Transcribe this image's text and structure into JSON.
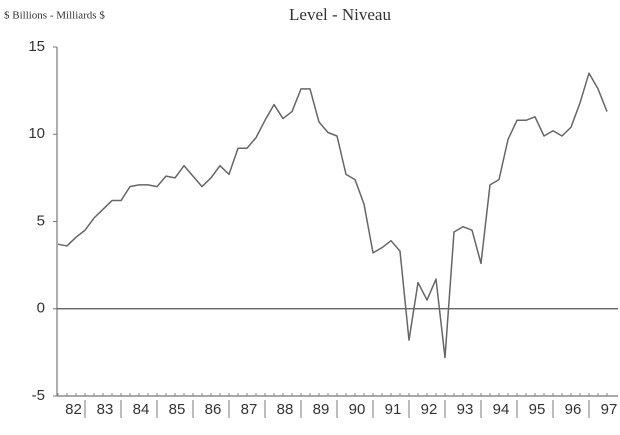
{
  "chart_data": {
    "type": "line",
    "title": "Level - Niveau",
    "y_axis_label": "$ Billions - Milliards $",
    "categories": [
      "82",
      null,
      null,
      "83",
      null,
      null,
      null,
      "84",
      null,
      null,
      null,
      "85",
      null,
      null,
      null,
      "86",
      null,
      null,
      null,
      "87",
      null,
      null,
      null,
      "88",
      null,
      null,
      null,
      "89",
      null,
      null,
      null,
      "90",
      null,
      null,
      null,
      "91",
      null,
      null,
      null,
      "92",
      null,
      null,
      null,
      "93",
      null,
      null,
      null,
      "94",
      null,
      null,
      null,
      "95",
      null,
      null,
      null,
      "96",
      null,
      null,
      null,
      "97",
      null,
      null
    ],
    "series": [
      {
        "color": "#666666",
        "values": [
          3.7,
          3.6,
          4.1,
          4.5,
          5.2,
          5.7,
          6.2,
          6.2,
          7.0,
          7.1,
          7.1,
          7.0,
          7.6,
          7.5,
          8.2,
          7.6,
          7.0,
          7.5,
          8.2,
          7.7,
          9.2,
          9.2,
          9.8,
          10.8,
          11.7,
          10.9,
          11.3,
          12.6,
          12.6,
          10.7,
          10.1,
          9.9,
          7.7,
          7.4,
          6.0,
          3.2,
          3.5,
          3.9,
          3.3,
          -1.8,
          1.5,
          0.5,
          1.7,
          -2.8,
          4.4,
          4.7,
          4.5,
          2.6,
          7.1,
          7.4,
          9.7,
          10.8,
          10.8,
          11.0,
          9.9,
          10.2,
          9.9,
          10.4,
          11.8,
          13.5,
          12.6,
          11.3
        ]
      }
    ],
    "ylim": [
      -5,
      15
    ],
    "yticks": [
      -5,
      0,
      5,
      10,
      15
    ]
  }
}
